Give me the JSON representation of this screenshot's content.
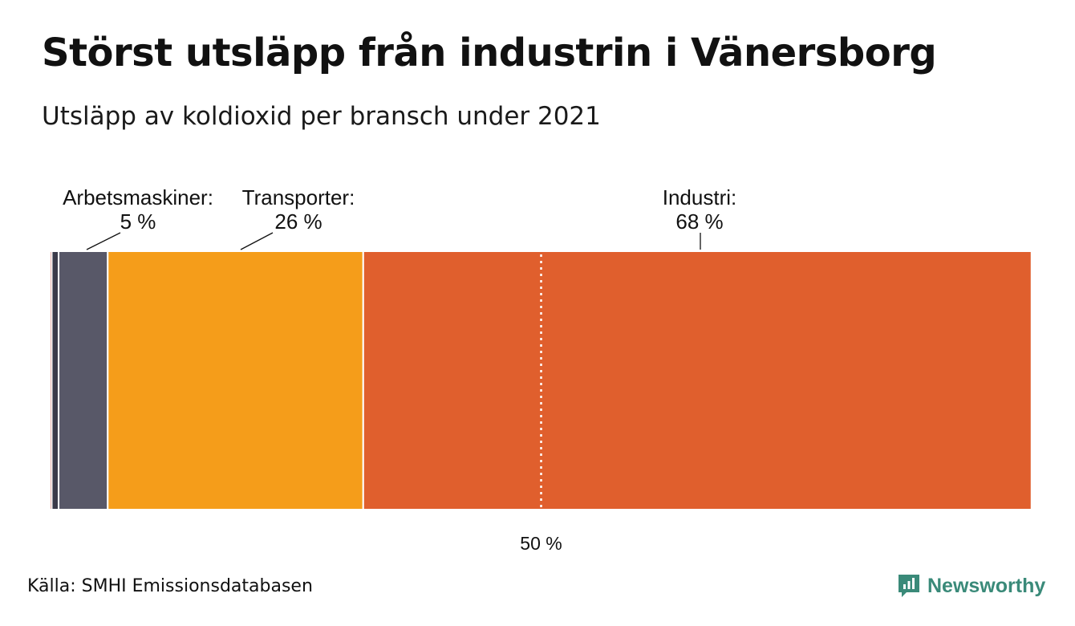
{
  "header": {
    "title": "Störst utsläpp från industrin i Vänersborg",
    "subtitle": "Utsläpp av koldioxid per bransch under 2021"
  },
  "footer": {
    "source": "Källa: SMHI Emissionsdatabasen",
    "brand": "Newsworthy",
    "brand_icon": "newsworthy-logo-icon"
  },
  "chart_data": {
    "type": "bar",
    "orientation": "horizontal-stacked-100",
    "xlim": [
      0,
      100
    ],
    "reference_line": {
      "value": 50,
      "label": "50 %"
    },
    "segments": [
      {
        "name": "",
        "value": 0.2,
        "color": "#c0392b",
        "label": "",
        "value_label": ""
      },
      {
        "name": "",
        "value": 0.7,
        "color": "#3b3b4a",
        "label": "",
        "value_label": ""
      },
      {
        "name": "Arbetsmaskiner",
        "value": 5,
        "color": "#585868",
        "label": "Arbetsmaskiner:",
        "value_label": "5 %"
      },
      {
        "name": "Transporter",
        "value": 26,
        "color": "#f59d1a",
        "label": "Transporter:",
        "value_label": "26 %"
      },
      {
        "name": "Industri",
        "value": 68,
        "color": "#e05f2d",
        "label": "Industri:",
        "value_label": "68 %"
      }
    ]
  }
}
